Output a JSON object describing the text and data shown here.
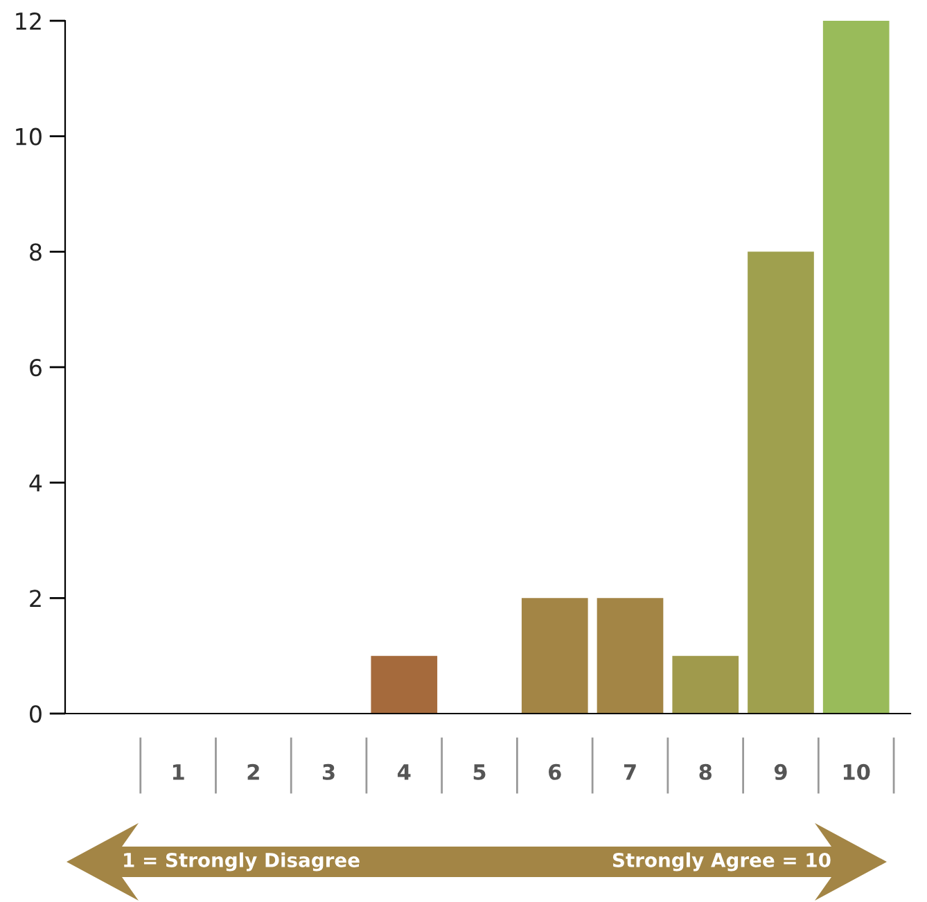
{
  "chart_data": {
    "type": "bar",
    "categories": [
      "1",
      "2",
      "3",
      "4",
      "5",
      "6",
      "7",
      "8",
      "9",
      "10"
    ],
    "values": [
      0,
      0,
      0,
      1,
      0,
      2,
      2,
      1,
      8,
      12
    ],
    "colors": [
      "#a83a35",
      "#a64a38",
      "#a65a3a",
      "#a56a3c",
      "#a47840",
      "#a38545",
      "#a38545",
      "#a09a4c",
      "#9fa04e",
      "#99bb5a"
    ],
    "ylim": [
      0,
      12
    ],
    "yticks": [
      0,
      2,
      4,
      6,
      8,
      10,
      12
    ],
    "grid": false,
    "legend": false,
    "annotations": [
      "1 = Strongly Disagree",
      "Strongly Agree = 10"
    ]
  }
}
